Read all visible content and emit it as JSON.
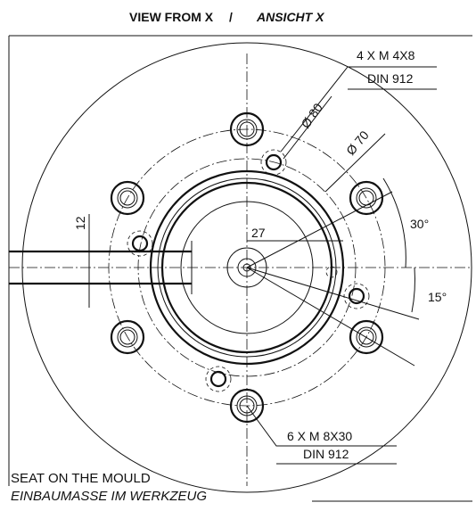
{
  "title": {
    "left": "VIEW FROM X",
    "separator": "/",
    "right": "ANSICHT X"
  },
  "small_bolts": {
    "spec": "4 X M 4X8",
    "standard": "DIN 912"
  },
  "dimensions": {
    "dia_80": "Ø 80",
    "dia_70": "Ø 70",
    "angle_30": "30°",
    "length_27": "27",
    "width_12": "12",
    "angle_15": "15°"
  },
  "large_bolts": {
    "spec": "6 X M 8X30",
    "standard": "DIN 912"
  },
  "footer": {
    "line1": "SEAT ON THE MOULD",
    "line2": "EINBAUMASSE IM WERKZEUG"
  }
}
